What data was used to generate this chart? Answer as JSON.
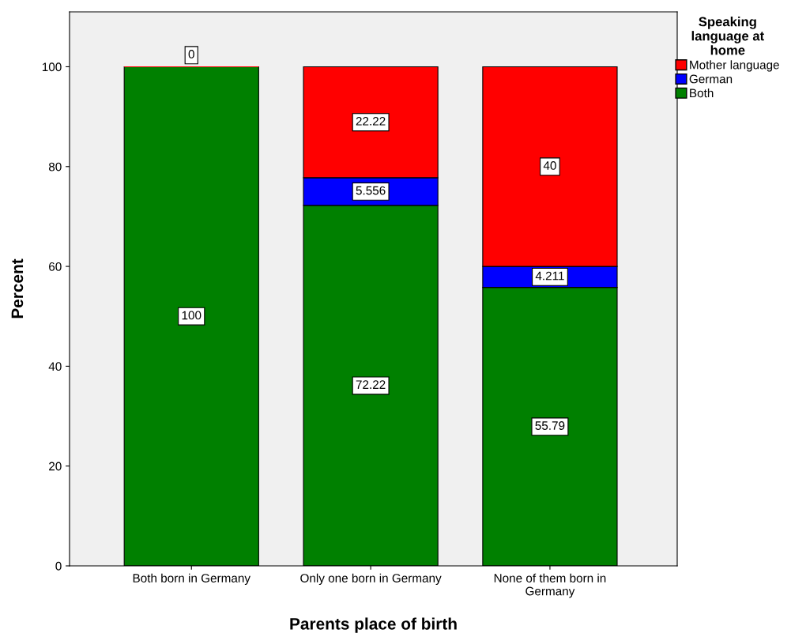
{
  "chart_data": {
    "type": "bar",
    "stacked": true,
    "xlabel": "Parents place of birth",
    "ylabel": "Percent",
    "categories": [
      "Both born in Germany",
      "Only one born in Germany",
      "None of them born in\nGermany"
    ],
    "series": [
      {
        "name": "Both",
        "color": "#008000",
        "values": [
          100,
          72.22,
          55.79
        ],
        "value_labels": [
          "100",
          "72.22",
          "55.79"
        ]
      },
      {
        "name": "German",
        "color": "#0000ff",
        "values": [
          null,
          5.556,
          4.211
        ],
        "value_labels": [
          null,
          "5.556",
          "4.211"
        ]
      },
      {
        "name": "Mother language",
        "color": "#ff0000",
        "values": [
          0,
          22.22,
          40
        ],
        "value_labels": [
          "0",
          "22.22",
          "40"
        ]
      }
    ],
    "legend_title": "Speaking\nlanguage at\nhome",
    "legend": "top right",
    "ylim": [
      0,
      111
    ],
    "yticks": [
      0,
      20,
      40,
      60,
      80,
      100
    ],
    "grid": false
  }
}
